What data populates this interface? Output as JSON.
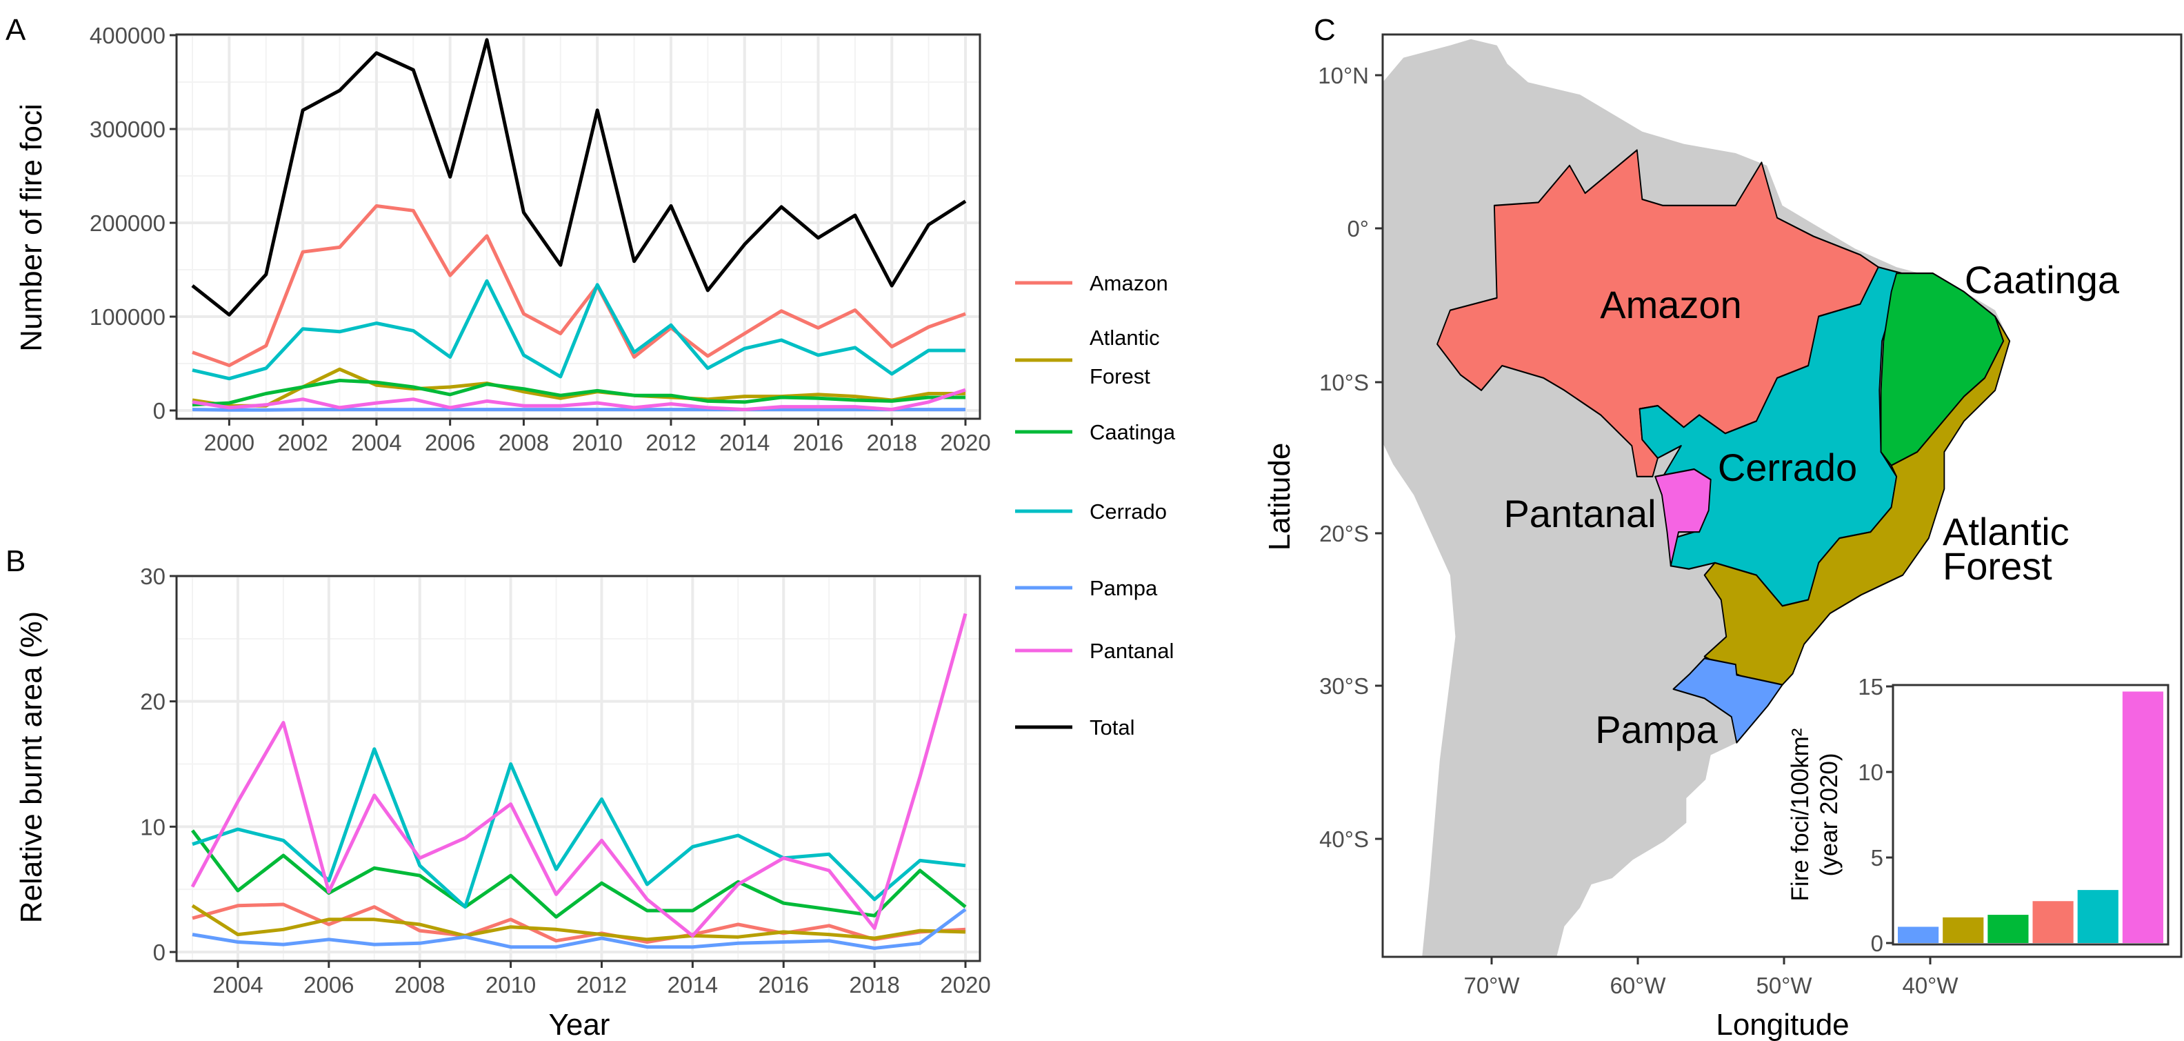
{
  "colors": {
    "Amazon": "#F8766D",
    "Atlantic Forest": "#B79F00",
    "Caatinga": "#00BA38",
    "Cerrado": "#00BFC4",
    "Pampa": "#619CFF",
    "Pantanal": "#F564E3",
    "Total": "#000000",
    "land": "#CCCCCC",
    "grid": "#EBEBEB"
  },
  "legend": {
    "placement": "right",
    "entries": [
      "Amazon",
      "Atlantic Forest",
      "Caatinga",
      "Cerrado",
      "Pampa",
      "Pantanal",
      "Total"
    ],
    "atlantic_line1": "Atlantic",
    "atlantic_line2": "Forest"
  },
  "chart_data": [
    {
      "panel": "A",
      "type": "line",
      "xlabel": "",
      "ylabel": "Number of fire foci",
      "xlim": [
        1999,
        2020
      ],
      "ylim": [
        0,
        400000
      ],
      "grid": true,
      "x_ticks": [
        "2000",
        "2002",
        "2004",
        "2006",
        "2008",
        "2010",
        "2012",
        "2014",
        "2016",
        "2018",
        "2020"
      ],
      "y_ticks": [
        "0",
        "100000",
        "200000",
        "300000",
        "400000"
      ],
      "x": [
        1999,
        2000,
        2001,
        2002,
        2003,
        2004,
        2005,
        2006,
        2007,
        2008,
        2009,
        2010,
        2011,
        2012,
        2013,
        2014,
        2015,
        2016,
        2017,
        2018,
        2019,
        2020
      ],
      "series": [
        {
          "name": "Amazon",
          "values": [
            62000,
            48000,
            69000,
            169000,
            174000,
            218000,
            213000,
            144000,
            186000,
            103000,
            82000,
            133000,
            57000,
            88000,
            58000,
            82000,
            106000,
            88000,
            107000,
            68000,
            89000,
            103000
          ]
        },
        {
          "name": "Atlantic Forest",
          "values": [
            11000,
            5000,
            5000,
            25000,
            44000,
            27000,
            23000,
            25000,
            29000,
            20000,
            13000,
            20000,
            16000,
            14000,
            12000,
            15000,
            15000,
            17000,
            15000,
            11000,
            18000,
            18000
          ]
        },
        {
          "name": "Caatinga",
          "values": [
            6000,
            8000,
            18000,
            25000,
            32000,
            30000,
            25000,
            17000,
            28000,
            23000,
            16000,
            21000,
            16000,
            16000,
            10000,
            9000,
            14000,
            13000,
            11000,
            10000,
            14000,
            14000
          ]
        },
        {
          "name": "Cerrado",
          "values": [
            43000,
            34000,
            45000,
            87000,
            84000,
            93000,
            85000,
            57000,
            138000,
            59000,
            36000,
            134000,
            62000,
            91000,
            45000,
            66000,
            75000,
            59000,
            67000,
            39000,
            64000,
            64000
          ]
        },
        {
          "name": "Pampa",
          "values": [
            1000,
            500,
            500,
            1000,
            1000,
            1000,
            1000,
            1000,
            1000,
            1000,
            1000,
            1000,
            1000,
            1000,
            1000,
            1000,
            1000,
            1000,
            1000,
            1000,
            1000,
            1000
          ]
        },
        {
          "name": "Pantanal",
          "values": [
            9000,
            3000,
            6000,
            12000,
            3000,
            8000,
            12000,
            3000,
            10000,
            5000,
            5000,
            8000,
            3000,
            7000,
            3000,
            1000,
            4000,
            4000,
            4000,
            1000,
            9000,
            22000
          ]
        },
        {
          "name": "Total",
          "values": [
            133000,
            102000,
            145000,
            320000,
            341000,
            381000,
            363000,
            249000,
            395000,
            211000,
            155000,
            320000,
            159000,
            218000,
            128000,
            177000,
            217000,
            184000,
            208000,
            133000,
            198000,
            223000
          ]
        }
      ]
    },
    {
      "panel": "B",
      "type": "line",
      "xlabel": "Year",
      "ylabel": "Relative burnt area (%)",
      "xlim": [
        2003,
        2020
      ],
      "ylim": [
        0,
        30
      ],
      "grid": true,
      "x_ticks": [
        "2004",
        "2006",
        "2008",
        "2010",
        "2012",
        "2014",
        "2016",
        "2018",
        "2020"
      ],
      "y_ticks": [
        "0",
        "10",
        "20",
        "30"
      ],
      "x": [
        2003,
        2004,
        2005,
        2006,
        2007,
        2008,
        2009,
        2010,
        2011,
        2012,
        2013,
        2014,
        2015,
        2016,
        2017,
        2018,
        2019,
        2020
      ],
      "series": [
        {
          "name": "Amazon",
          "values": [
            2.7,
            3.7,
            3.8,
            2.2,
            3.6,
            1.7,
            1.3,
            2.6,
            0.9,
            1.5,
            0.8,
            1.4,
            2.2,
            1.5,
            2.1,
            1.0,
            1.6,
            1.8
          ]
        },
        {
          "name": "Atlantic Forest",
          "values": [
            3.7,
            1.4,
            1.8,
            2.6,
            2.6,
            2.2,
            1.3,
            2.0,
            1.8,
            1.4,
            1.0,
            1.3,
            1.2,
            1.6,
            1.4,
            1.1,
            1.7,
            1.6
          ]
        },
        {
          "name": "Caatinga",
          "values": [
            9.7,
            4.9,
            7.7,
            4.7,
            6.7,
            6.1,
            3.6,
            6.1,
            2.8,
            5.5,
            3.3,
            3.3,
            5.6,
            3.9,
            3.4,
            2.9,
            6.5,
            3.6
          ]
        },
        {
          "name": "Cerrado",
          "values": [
            8.6,
            9.8,
            8.9,
            5.7,
            16.2,
            6.9,
            3.6,
            15.0,
            6.6,
            12.2,
            5.4,
            8.4,
            9.3,
            7.5,
            7.8,
            4.2,
            7.3,
            6.9
          ]
        },
        {
          "name": "Pampa",
          "values": [
            1.4,
            0.8,
            0.6,
            1.0,
            0.6,
            0.7,
            1.2,
            0.4,
            0.4,
            1.1,
            0.4,
            0.4,
            0.7,
            0.8,
            0.9,
            0.3,
            0.7,
            3.4
          ]
        },
        {
          "name": "Pantanal",
          "values": [
            5.2,
            12.0,
            18.3,
            4.8,
            12.5,
            7.5,
            9.1,
            11.8,
            4.6,
            8.9,
            4.2,
            1.3,
            5.4,
            7.5,
            6.5,
            1.9,
            14.0,
            27.0
          ]
        }
      ]
    },
    {
      "panel": "C-inset",
      "type": "bar",
      "xlabel": "",
      "ylabel_line1": "Fire foci/100km²",
      "ylabel_line2": "(year 2020)",
      "ylim": [
        0,
        15
      ],
      "y_ticks": [
        "0",
        "5",
        "10",
        "15"
      ],
      "categories": [
        "Pampa",
        "Atlantic Forest",
        "Caatinga",
        "Amazon",
        "Cerrado",
        "Pantanal"
      ],
      "values": [
        0.95,
        1.5,
        1.65,
        2.45,
        3.1,
        14.7
      ]
    }
  ],
  "panels": {
    "a": "A",
    "b": "B",
    "c": "C"
  },
  "map": {
    "xlabel": "Longitude",
    "ylabel": "Latitude",
    "lon_ticks": [
      "70°W",
      "60°W",
      "50°W",
      "40°W"
    ],
    "lat_ticks": [
      "10°N",
      "0°",
      "10°S",
      "20°S",
      "30°S",
      "40°S"
    ],
    "regions": {
      "amazon": "Amazon",
      "caatinga": "Caatinga",
      "cerrado": "Cerrado",
      "pantanal": "Pantanal",
      "atlantic1": "Atlantic",
      "atlantic2": "Forest",
      "pampa": "Pampa"
    }
  }
}
